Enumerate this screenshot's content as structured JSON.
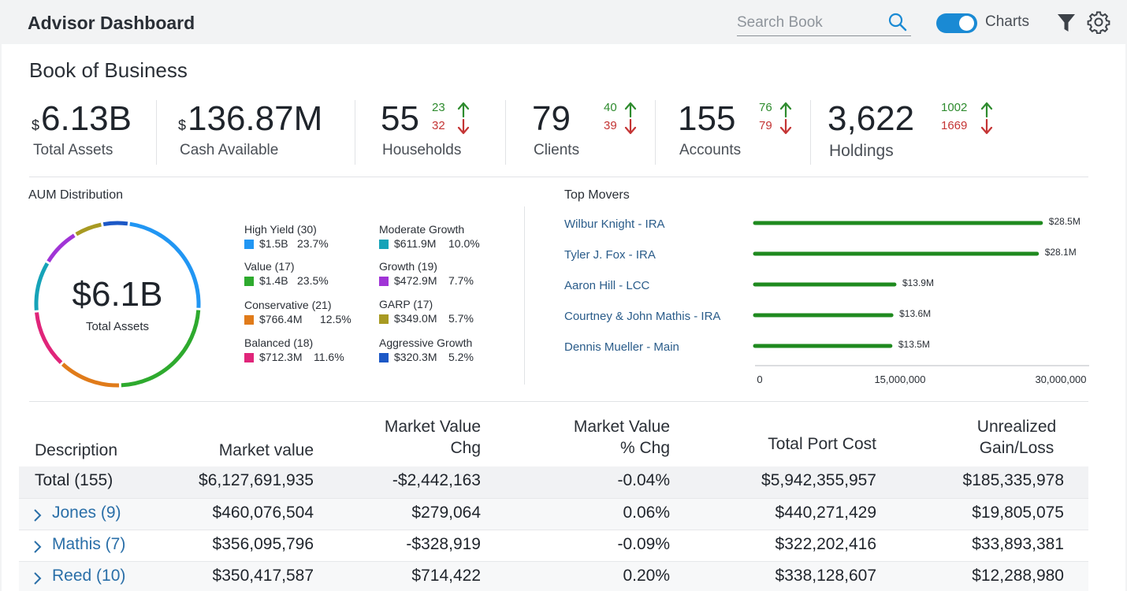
{
  "header": {
    "title": "Advisor Dashboard",
    "search_placeholder": "Search Book",
    "charts_label": "Charts",
    "charts_toggle_on": true,
    "icons": [
      "search-icon",
      "filter-icon",
      "gear-icon"
    ]
  },
  "section_title": "Book of Business",
  "kpis": {
    "total_assets": {
      "currency": "$",
      "value": "6.13B",
      "label": "Total Assets"
    },
    "cash_available": {
      "currency": "$",
      "value": "136.87M",
      "label": "Cash Available"
    },
    "households": {
      "value": "55",
      "label": "Households",
      "up": "23",
      "down": "32"
    },
    "clients": {
      "value": "79",
      "label": "Clients",
      "up": "40",
      "down": "39"
    },
    "accounts": {
      "value": "155",
      "label": "Accounts",
      "up": "76",
      "down": "79"
    },
    "holdings": {
      "value": "3,622",
      "label": "Holdings",
      "up": "1002",
      "down": "1669"
    }
  },
  "colors": {
    "accent": "#1a8ad4",
    "up": "#2e8b2e",
    "down": "#c43434",
    "bar": "#1f8a1f"
  },
  "aum": {
    "title": "AUM Distribution",
    "center_value": "$6.1B",
    "center_label": "Total Assets",
    "legend": [
      {
        "name": "High Yield (30)",
        "value": "$1.5B",
        "pct": "23.7%",
        "color": "#2196f3"
      },
      {
        "name": "Value (17)",
        "value": "$1.4B",
        "pct": "23.5%",
        "color": "#2eaa2e"
      },
      {
        "name": "Conservative (21)",
        "value": "$766.4M",
        "pct": "12.5%",
        "color": "#e07b1a"
      },
      {
        "name": "Balanced (18)",
        "value": "$712.3M",
        "pct": "11.6%",
        "color": "#e0257a"
      },
      {
        "name": "Moderate Growth",
        "value": "$611.9M",
        "pct": "10.0%",
        "color": "#16a3b8"
      },
      {
        "name": "Growth (19)",
        "value": "$472.9M",
        "pct": "7.7%",
        "color": "#a034d6"
      },
      {
        "name": "GARP (17)",
        "value": "$349.0M",
        "pct": "5.7%",
        "color": "#a89a22"
      },
      {
        "name": "Aggressive Growth",
        "value": "$320.3M",
        "pct": "5.2%",
        "color": "#1c58c6"
      }
    ]
  },
  "chart_data": {
    "type": "bar",
    "title": "Top Movers",
    "orientation": "horizontal",
    "categories": [
      "Wilbur Knight - IRA",
      "Tyler J. Fox - IRA",
      "Aaron Hill - LCC",
      "Courtney & John Mathis - IRA",
      "Dennis Mueller - Main"
    ],
    "values": [
      28500000,
      28100000,
      13900000,
      13600000,
      13500000
    ],
    "data_labels": [
      "$28.5M",
      "$28.1M",
      "$13.9M",
      "$13.6M",
      "$13.5M"
    ],
    "xlim": [
      0,
      30000000
    ],
    "x_ticks": [
      "0",
      "15,000,000",
      "30,000,000"
    ],
    "grid": false
  },
  "table": {
    "headers": {
      "description": "Description",
      "market_value": "Market value",
      "mv_chg_line1": "Market Value",
      "mv_chg_line2": "Chg",
      "mv_pct_line1": "Market Value",
      "mv_pct_line2": "% Chg",
      "port_cost": "Total Port Cost",
      "gain_line1": "Unrealized",
      "gain_line2": "Gain/Loss"
    },
    "total": {
      "description": "Total (155)",
      "market_value": "$6,127,691,935",
      "mv_chg": "-$2,442,163",
      "mv_pct": "-0.04%",
      "port_cost": "$5,942,355,957",
      "gain": "$185,335,978"
    },
    "rows": [
      {
        "description": "Jones (9)",
        "market_value": "$460,076,504",
        "mv_chg": "$279,064",
        "mv_pct": "0.06%",
        "port_cost": "$440,271,429",
        "gain": "$19,805,075"
      },
      {
        "description": "Mathis (7)",
        "market_value": "$356,095,796",
        "mv_chg": "-$328,919",
        "mv_pct": "-0.09%",
        "port_cost": "$322,202,416",
        "gain": "$33,893,381"
      },
      {
        "description": "Reed (10)",
        "market_value": "$350,417,587",
        "mv_chg": "$714,422",
        "mv_pct": "0.20%",
        "port_cost": "$338,128,607",
        "gain": "$12,288,980"
      }
    ]
  }
}
